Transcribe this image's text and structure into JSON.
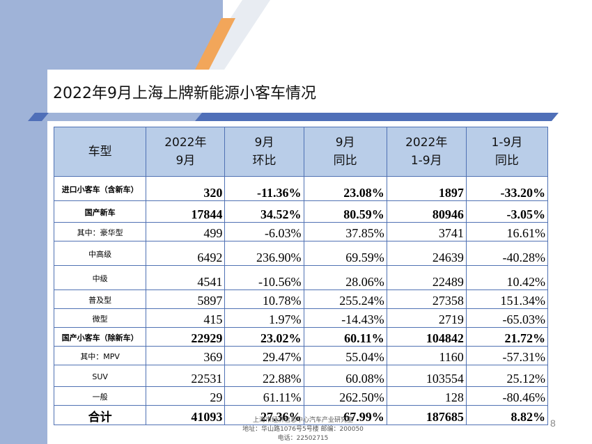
{
  "title": "2022年9月上海上牌新能源小客车情况",
  "table": {
    "headers": [
      [
        "车型"
      ],
      [
        "2022年",
        "9月"
      ],
      [
        "9月",
        "环比"
      ],
      [
        "9月",
        "同比"
      ],
      [
        "2022年",
        "1-9月"
      ],
      [
        "1-9月",
        "同比"
      ]
    ],
    "rows": [
      {
        "model": "进口小客车（含新车）",
        "values": [
          "320",
          "-11.36%",
          "23.08%",
          "1897",
          "-33.20%"
        ]
      },
      {
        "model": "国产新车",
        "values": [
          "17844",
          "34.52%",
          "80.59%",
          "80946",
          "-3.05%"
        ]
      },
      {
        "model": "其中：豪华型",
        "values": [
          "499",
          "-6.03%",
          "37.85%",
          "3741",
          "16.61%"
        ]
      },
      {
        "model": "中高级",
        "values": [
          "6492",
          "236.90%",
          "69.59%",
          "24639",
          "-40.28%"
        ]
      },
      {
        "model": "中级",
        "values": [
          "4541",
          "-10.56%",
          "28.06%",
          "22489",
          "10.42%"
        ]
      },
      {
        "model": "普及型",
        "values": [
          "5897",
          "10.78%",
          "255.24%",
          "27358",
          "151.34%"
        ]
      },
      {
        "model": "微型",
        "values": [
          "415",
          "1.97%",
          "-14.43%",
          "2719",
          "-65.03%"
        ]
      },
      {
        "model": "国产小客车（除新车）",
        "values": [
          "22929",
          "23.02%",
          "60.11%",
          "104842",
          "21.72%"
        ]
      },
      {
        "model": "其中：MPV",
        "values": [
          "369",
          "29.47%",
          "55.04%",
          "1160",
          "-57.31%"
        ]
      },
      {
        "model": "SUV",
        "values": [
          "22531",
          "22.88%",
          "60.08%",
          "103554",
          "25.12%"
        ]
      },
      {
        "model": "一般",
        "values": [
          "29",
          "61.11%",
          "262.50%",
          "128",
          "-80.46%"
        ]
      },
      {
        "model": "合计",
        "values": [
          "41093",
          "27.36%",
          "67.99%",
          "187685",
          "8.82%"
        ]
      }
    ]
  },
  "footer": {
    "line1": "上海市经济信息中心汽车产业研究室",
    "line2": "地址：华山路1076号5号楼    邮编：200050",
    "line3": "电话：22502715"
  },
  "page_number": "8",
  "colors": {
    "band": "#9fb3d8",
    "accent_orange": "#f2a65a",
    "header_fill": "#b9cde8",
    "border": "#4f71b3",
    "bar_blue": "#4f6fb8"
  }
}
